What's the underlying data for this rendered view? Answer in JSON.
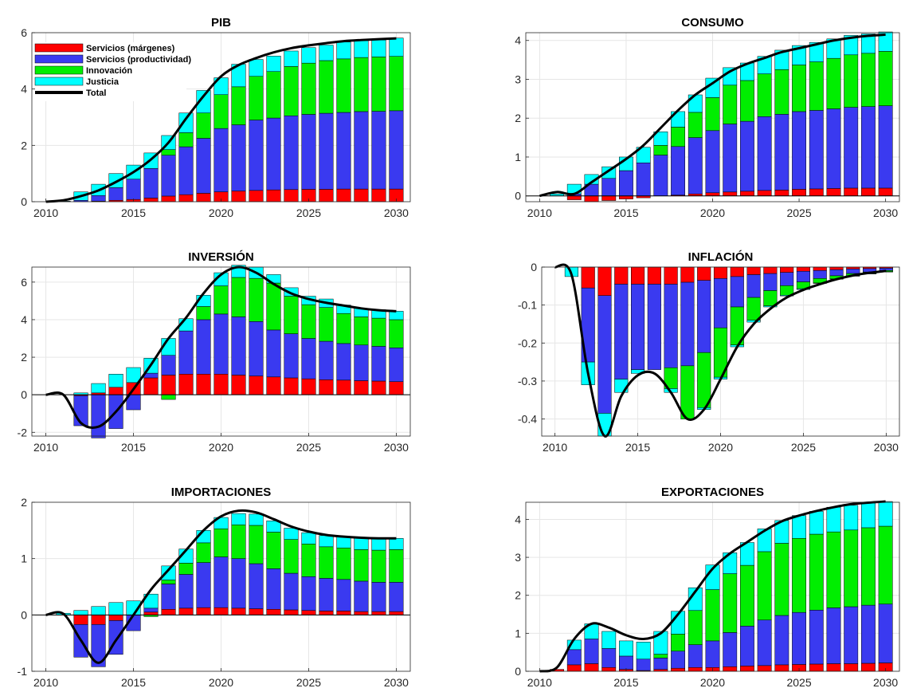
{
  "colors": {
    "margins": "#ff0000",
    "productivity": "#3a3af0",
    "innovation": "#00ee00",
    "justice": "#00ffff",
    "total": "#000000"
  },
  "legend": {
    "placement": "top-left of first panel",
    "items": [
      {
        "label": "Servicios (márgenes)",
        "color": "#ff0000"
      },
      {
        "label": "Servicios (productividad)",
        "color": "#3a3af0"
      },
      {
        "label": "Innovación",
        "color": "#00ee00"
      },
      {
        "label": "Justicia",
        "color": "#00ffff"
      },
      {
        "label": "Total",
        "color": "#000000"
      }
    ]
  },
  "chart_data": [
    {
      "type": "bar",
      "stacked": true,
      "title": "PIB",
      "x": [
        2010,
        2011,
        2012,
        2013,
        2014,
        2015,
        2016,
        2017,
        2018,
        2019,
        2020,
        2021,
        2022,
        2023,
        2024,
        2025,
        2026,
        2027,
        2028,
        2029,
        2030
      ],
      "xticks": [
        2010,
        2015,
        2020,
        2025,
        2030
      ],
      "ylim": [
        0,
        6
      ],
      "yticks": [
        0,
        2,
        4,
        6
      ],
      "ytick_labels": [
        "0",
        "2",
        "4",
        "6"
      ],
      "series": [
        {
          "name": "Servicios (márgenes)",
          "values": [
            0,
            0,
            0,
            0.02,
            0.05,
            0.08,
            0.13,
            0.2,
            0.25,
            0.3,
            0.35,
            0.38,
            0.4,
            0.42,
            0.43,
            0.44,
            0.44,
            0.45,
            0.45,
            0.45,
            0.45
          ]
        },
        {
          "name": "Servicios (productividad)",
          "values": [
            0,
            0,
            0.05,
            0.2,
            0.45,
            0.72,
            1.05,
            1.45,
            1.7,
            1.95,
            2.25,
            2.35,
            2.5,
            2.55,
            2.62,
            2.66,
            2.7,
            2.72,
            2.75,
            2.76,
            2.78
          ]
        },
        {
          "name": "Innovación",
          "values": [
            0,
            0,
            0,
            0,
            0,
            0,
            0,
            0.2,
            0.5,
            0.9,
            1.2,
            1.35,
            1.55,
            1.65,
            1.75,
            1.82,
            1.87,
            1.9,
            1.92,
            1.93,
            1.93
          ]
        },
        {
          "name": "Justicia",
          "values": [
            0,
            0.02,
            0.3,
            0.4,
            0.5,
            0.5,
            0.55,
            0.5,
            0.7,
            0.8,
            0.6,
            0.8,
            0.6,
            0.55,
            0.55,
            0.55,
            0.55,
            0.6,
            0.6,
            0.6,
            0.65
          ]
        }
      ],
      "total": [
        0,
        0.05,
        0.2,
        0.4,
        0.7,
        1.05,
        1.5,
        2.1,
        2.95,
        3.75,
        4.45,
        4.85,
        5.1,
        5.3,
        5.45,
        5.55,
        5.63,
        5.7,
        5.74,
        5.77,
        5.8
      ]
    },
    {
      "type": "bar",
      "stacked": true,
      "title": "CONSUMO",
      "x": [
        2010,
        2011,
        2012,
        2013,
        2014,
        2015,
        2016,
        2017,
        2018,
        2019,
        2020,
        2021,
        2022,
        2023,
        2024,
        2025,
        2026,
        2027,
        2028,
        2029,
        2030
      ],
      "xticks": [
        2010,
        2015,
        2020,
        2025,
        2030
      ],
      "ylim": [
        -0.15,
        4.2
      ],
      "yticks": [
        0,
        1,
        2,
        3,
        4
      ],
      "ytick_labels": [
        "0",
        "1",
        "2",
        "3",
        "4"
      ],
      "series": [
        {
          "name": "Servicios (márgenes)",
          "values": [
            0,
            0,
            -0.1,
            -0.15,
            -0.12,
            -0.08,
            -0.05,
            0,
            0.02,
            0.05,
            0.08,
            0.1,
            0.12,
            0.14,
            0.15,
            0.17,
            0.18,
            0.19,
            0.2,
            0.2,
            0.2
          ]
        },
        {
          "name": "Servicios (productividad)",
          "values": [
            0,
            0,
            0.05,
            0.3,
            0.45,
            0.65,
            0.85,
            1.05,
            1.25,
            1.45,
            1.6,
            1.75,
            1.8,
            1.9,
            1.95,
            2,
            2.02,
            2.05,
            2.08,
            2.1,
            2.12
          ]
        },
        {
          "name": "Innovación",
          "values": [
            0,
            0,
            0,
            0,
            0,
            0,
            0,
            0.25,
            0.5,
            0.65,
            0.85,
            1,
            1.05,
            1.1,
            1.15,
            1.2,
            1.25,
            1.3,
            1.35,
            1.37,
            1.4
          ]
        },
        {
          "name": "Justicia",
          "values": [
            0,
            0.05,
            0.25,
            0.25,
            0.3,
            0.35,
            0.4,
            0.35,
            0.4,
            0.45,
            0.5,
            0.45,
            0.45,
            0.45,
            0.5,
            0.5,
            0.5,
            0.5,
            0.5,
            0.5,
            0.5
          ]
        }
      ],
      "total": [
        0,
        0.1,
        0.05,
        0.35,
        0.65,
        0.95,
        1.3,
        1.75,
        2.2,
        2.6,
        2.9,
        3.2,
        3.4,
        3.55,
        3.7,
        3.8,
        3.9,
        4,
        4.07,
        4.12,
        4.15
      ]
    },
    {
      "type": "bar",
      "stacked": true,
      "title": "INVERSIÓN",
      "x": [
        2010,
        2011,
        2012,
        2013,
        2014,
        2015,
        2016,
        2017,
        2018,
        2019,
        2020,
        2021,
        2022,
        2023,
        2024,
        2025,
        2026,
        2027,
        2028,
        2029,
        2030
      ],
      "xticks": [
        2010,
        2015,
        2020,
        2025,
        2030
      ],
      "ylim": [
        -2.2,
        6.8
      ],
      "yticks": [
        -2,
        0,
        2,
        4,
        6
      ],
      "ytick_labels": [
        "-2",
        "0",
        "2",
        "4",
        "6"
      ],
      "series": [
        {
          "name": "Servicios (márgenes)",
          "values": [
            0,
            0,
            -0.05,
            0.1,
            0.4,
            0.65,
            0.9,
            1.05,
            1.1,
            1.1,
            1.1,
            1.05,
            1,
            0.95,
            0.9,
            0.85,
            0.8,
            0.78,
            0.75,
            0.73,
            0.7
          ]
        },
        {
          "name": "Servicios (productividad)",
          "values": [
            0,
            0,
            -1.6,
            -2.3,
            -1.8,
            -0.8,
            0.25,
            1.05,
            2.3,
            2.9,
            3.2,
            3.1,
            2.9,
            2.5,
            2.35,
            2.15,
            2.05,
            1.95,
            1.9,
            1.85,
            1.8
          ]
        },
        {
          "name": "Innovación",
          "values": [
            0,
            0,
            0,
            0,
            0,
            0,
            0,
            -0.25,
            0,
            0.7,
            1.5,
            2.1,
            2.3,
            2.5,
            2,
            1.8,
            1.8,
            1.6,
            1.5,
            1.5,
            1.5
          ]
        },
        {
          "name": "Justicia",
          "values": [
            0,
            0,
            0.1,
            0.5,
            0.7,
            0.8,
            0.8,
            0.9,
            0.65,
            0.6,
            0.7,
            0.65,
            0.6,
            0.45,
            0.45,
            0.45,
            0.45,
            0.45,
            0.45,
            0.45,
            0.45
          ]
        }
      ],
      "total": [
        0,
        0,
        -1.5,
        -1.7,
        -0.9,
        0.3,
        1.6,
        3,
        4.1,
        5.4,
        6.4,
        6.8,
        6.5,
        5.9,
        5.4,
        5.1,
        4.9,
        4.75,
        4.6,
        4.5,
        4.45
      ]
    },
    {
      "type": "bar",
      "stacked": true,
      "title": "INFLACIÓN",
      "x": [
        2010,
        2011,
        2012,
        2013,
        2014,
        2015,
        2016,
        2017,
        2018,
        2019,
        2020,
        2021,
        2022,
        2023,
        2024,
        2025,
        2026,
        2027,
        2028,
        2029,
        2030
      ],
      "xticks": [
        2010,
        2015,
        2020,
        2025,
        2030
      ],
      "ylim": [
        -0.445,
        0
      ],
      "yticks": [
        -0.4,
        -0.3,
        -0.2,
        -0.1,
        0
      ],
      "ytick_labels": [
        "-0.4",
        "-0.3",
        "-0.2",
        "-0.1",
        "0"
      ],
      "series": [
        {
          "name": "Servicios (márgenes)",
          "values": [
            0,
            0,
            -0.055,
            -0.075,
            -0.045,
            -0.045,
            -0.045,
            -0.045,
            -0.04,
            -0.035,
            -0.03,
            -0.025,
            -0.02,
            -0.017,
            -0.014,
            -0.011,
            -0.009,
            -0.007,
            -0.005,
            -0.004,
            -0.003
          ]
        },
        {
          "name": "Servicios (productividad)",
          "values": [
            0,
            0,
            -0.195,
            -0.31,
            -0.25,
            -0.225,
            -0.225,
            -0.22,
            -0.22,
            -0.19,
            -0.13,
            -0.08,
            -0.06,
            -0.045,
            -0.035,
            -0.028,
            -0.021,
            -0.016,
            -0.012,
            -0.009,
            -0.006
          ]
        },
        {
          "name": "Innovación",
          "values": [
            0,
            0,
            0,
            0,
            0,
            0,
            0,
            -0.055,
            -0.14,
            -0.145,
            -0.13,
            -0.1,
            -0.06,
            -0.04,
            -0.025,
            -0.018,
            -0.012,
            -0.008,
            -0.006,
            -0.004,
            -0.003
          ]
        },
        {
          "name": "Justicia",
          "values": [
            0,
            -0.025,
            -0.06,
            -0.06,
            -0.035,
            -0.01,
            0,
            -0.01,
            0,
            -0.005,
            -0.005,
            -0.005,
            -0.005,
            -0.003,
            -0.002,
            -0.002,
            -0.001,
            -0.001,
            -0.001,
            -0.001,
            -0.001
          ]
        }
      ],
      "total": [
        0,
        -0.02,
        -0.28,
        -0.445,
        -0.34,
        -0.285,
        -0.28,
        -0.33,
        -0.4,
        -0.375,
        -0.295,
        -0.21,
        -0.15,
        -0.11,
        -0.08,
        -0.06,
        -0.045,
        -0.032,
        -0.022,
        -0.015,
        -0.01
      ]
    },
    {
      "type": "bar",
      "stacked": true,
      "title": "IMPORTACIONES",
      "x": [
        2010,
        2011,
        2012,
        2013,
        2014,
        2015,
        2016,
        2017,
        2018,
        2019,
        2020,
        2021,
        2022,
        2023,
        2024,
        2025,
        2026,
        2027,
        2028,
        2029,
        2030
      ],
      "xticks": [
        2010,
        2015,
        2020,
        2025,
        2030
      ],
      "ylim": [
        -1,
        2
      ],
      "yticks": [
        -1,
        0,
        1,
        2
      ],
      "ytick_labels": [
        "-1",
        "0",
        "1",
        "2"
      ],
      "series": [
        {
          "name": "Servicios (márgenes)",
          "values": [
            0,
            0,
            -0.17,
            -0.17,
            -0.1,
            0,
            0.05,
            0.1,
            0.12,
            0.13,
            0.13,
            0.12,
            0.11,
            0.1,
            0.09,
            0.08,
            0.07,
            0.07,
            0.06,
            0.06,
            0.06
          ]
        },
        {
          "name": "Servicios (productividad)",
          "values": [
            0,
            0,
            -0.58,
            -0.75,
            -0.6,
            -0.28,
            0.07,
            0.45,
            0.6,
            0.8,
            0.9,
            0.88,
            0.8,
            0.72,
            0.65,
            0.6,
            0.58,
            0.56,
            0.54,
            0.52,
            0.52
          ]
        },
        {
          "name": "Innovación",
          "values": [
            0,
            0,
            0,
            0,
            0,
            0,
            -0.03,
            0.07,
            0.2,
            0.35,
            0.5,
            0.6,
            0.68,
            0.65,
            0.6,
            0.58,
            0.56,
            0.56,
            0.56,
            0.57,
            0.58
          ]
        },
        {
          "name": "Justicia",
          "values": [
            0,
            0.03,
            0.08,
            0.15,
            0.22,
            0.25,
            0.25,
            0.25,
            0.25,
            0.22,
            0.2,
            0.2,
            0.2,
            0.2,
            0.2,
            0.2,
            0.2,
            0.2,
            0.2,
            0.2,
            0.2
          ]
        }
      ],
      "total": [
        0,
        0.02,
        -0.45,
        -0.85,
        -0.45,
        0,
        0.45,
        0.8,
        1.15,
        1.5,
        1.75,
        1.85,
        1.82,
        1.7,
        1.57,
        1.48,
        1.42,
        1.39,
        1.37,
        1.36,
        1.36
      ]
    },
    {
      "type": "bar",
      "stacked": true,
      "title": "EXPORTACIONES",
      "x": [
        2010,
        2011,
        2012,
        2013,
        2014,
        2015,
        2016,
        2017,
        2018,
        2019,
        2020,
        2021,
        2022,
        2023,
        2024,
        2025,
        2026,
        2027,
        2028,
        2029,
        2030
      ],
      "xticks": [
        2010,
        2015,
        2020,
        2025,
        2030
      ],
      "ylim": [
        0,
        4.45
      ],
      "yticks": [
        0,
        1,
        2,
        3,
        4
      ],
      "ytick_labels": [
        "0",
        "1",
        "2",
        "3",
        "4"
      ],
      "series": [
        {
          "name": "Servicios (márgenes)",
          "values": [
            0,
            0.05,
            0.17,
            0.2,
            0.1,
            0.05,
            0.02,
            0.05,
            0.08,
            0.1,
            0.1,
            0.12,
            0.14,
            0.15,
            0.17,
            0.18,
            0.19,
            0.2,
            0.2,
            0.21,
            0.22
          ]
        },
        {
          "name": "Servicios (productividad)",
          "values": [
            0,
            0,
            0.4,
            0.65,
            0.5,
            0.35,
            0.3,
            0.3,
            0.45,
            0.6,
            0.7,
            0.9,
            1.05,
            1.2,
            1.3,
            1.37,
            1.42,
            1.47,
            1.5,
            1.53,
            1.55
          ]
        },
        {
          "name": "Innovación",
          "values": [
            0,
            0,
            0,
            0,
            0,
            0,
            0,
            0.1,
            0.45,
            0.9,
            1.35,
            1.55,
            1.6,
            1.8,
            1.9,
            1.95,
            2,
            2,
            2.02,
            2.04,
            2.05
          ]
        },
        {
          "name": "Justicia",
          "values": [
            0,
            0,
            0.25,
            0.4,
            0.45,
            0.4,
            0.45,
            0.6,
            0.6,
            0.6,
            0.65,
            0.55,
            0.6,
            0.6,
            0.6,
            0.6,
            0.6,
            0.65,
            0.65,
            0.65,
            0.65
          ]
        }
      ],
      "total": [
        0,
        0.1,
        0.85,
        1.25,
        1.15,
        0.95,
        0.85,
        1,
        1.5,
        2.1,
        2.7,
        3.1,
        3.4,
        3.7,
        3.95,
        4.1,
        4.22,
        4.32,
        4.4,
        4.44,
        4.47
      ]
    }
  ]
}
